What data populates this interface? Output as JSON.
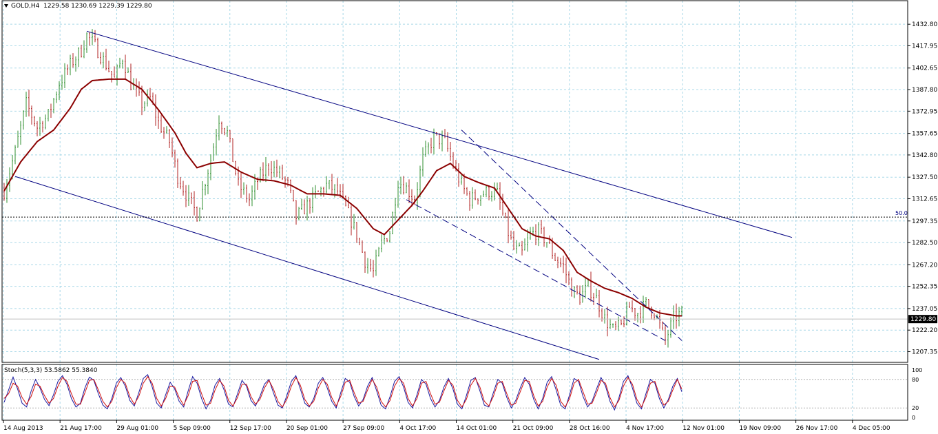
{
  "header": {
    "symbol_tf": "GOLD,H4",
    "ohlc": "1229.58 1230.69 1229.39 1229.80"
  },
  "colors": {
    "bull": "#2f8f2f",
    "bear": "#b22222",
    "ma": "#8b0000",
    "channel": "#000080",
    "grid": "#a8d8e8",
    "stoch_main": "#1a1aa0",
    "stoch_signal": "#d01010"
  },
  "chart_data": [
    {
      "type": "candlestick",
      "ylim": [
        1200.0,
        1440.0
      ],
      "y_ticks": [
        "1432.80",
        "1417.95",
        "1402.65",
        "1387.80",
        "1372.95",
        "1357.65",
        "1342.80",
        "1327.50",
        "1312.65",
        "1297.35",
        "1282.50",
        "1267.20",
        "1252.35",
        "1237.05",
        "1222.20",
        "1207.35"
      ],
      "x_ticks": [
        "14 Aug 2013",
        "21 Aug 17:00",
        "29 Aug 01:00",
        "5 Sep 09:00",
        "12 Sep 17:00",
        "20 Sep 01:00",
        "27 Sep 09:00",
        "4 Oct 17:00",
        "14 Oct 01:00",
        "21 Oct 09:00",
        "28 Oct 16:00",
        "4 Nov 17:00",
        "12 Nov 01:00",
        "19 Nov 09:00",
        "26 Nov 17:00",
        "4 Dec 05:00"
      ],
      "current_price": "1229.80",
      "level_line": {
        "label": "50.0",
        "value": 1300.0
      },
      "price_path": [
        [
          0,
          1318
        ],
        [
          4,
          1345
        ],
        [
          8,
          1378
        ],
        [
          12,
          1362
        ],
        [
          16,
          1370
        ],
        [
          20,
          1392
        ],
        [
          24,
          1405
        ],
        [
          28,
          1415
        ],
        [
          30,
          1425
        ],
        [
          33,
          1418
        ],
        [
          37,
          1405
        ],
        [
          40,
          1395
        ],
        [
          43,
          1410
        ],
        [
          46,
          1392
        ],
        [
          50,
          1378
        ],
        [
          53,
          1382
        ],
        [
          56,
          1365
        ],
        [
          60,
          1352
        ],
        [
          63,
          1328
        ],
        [
          66,
          1316
        ],
        [
          70,
          1302
        ],
        [
          72,
          1318
        ],
        [
          75,
          1340
        ],
        [
          78,
          1368
        ],
        [
          81,
          1358
        ],
        [
          85,
          1322
        ],
        [
          89,
          1312
        ],
        [
          92,
          1325
        ],
        [
          96,
          1336
        ],
        [
          100,
          1330
        ],
        [
          103,
          1322
        ],
        [
          106,
          1300
        ],
        [
          110,
          1308
        ],
        [
          113,
          1315
        ],
        [
          117,
          1322
        ],
        [
          121,
          1318
        ],
        [
          125,
          1302
        ],
        [
          128,
          1288
        ],
        [
          131,
          1270
        ],
        [
          134,
          1262
        ],
        [
          137,
          1282
        ],
        [
          140,
          1290
        ],
        [
          143,
          1325
        ],
        [
          146,
          1320
        ],
        [
          149,
          1312
        ],
        [
          152,
          1340
        ],
        [
          156,
          1355
        ],
        [
          160,
          1352
        ],
        [
          163,
          1336
        ],
        [
          166,
          1322
        ],
        [
          169,
          1312
        ],
        [
          172,
          1315
        ],
        [
          176,
          1318
        ],
        [
          179,
          1316
        ],
        [
          182,
          1295
        ],
        [
          185,
          1278
        ],
        [
          188,
          1275
        ],
        [
          191,
          1288
        ],
        [
          194,
          1290
        ],
        [
          197,
          1283
        ],
        [
          200,
          1272
        ],
        [
          203,
          1266
        ],
        [
          206,
          1250
        ],
        [
          209,
          1245
        ],
        [
          212,
          1252
        ],
        [
          215,
          1244
        ],
        [
          218,
          1230
        ],
        [
          221,
          1222
        ],
        [
          224,
          1225
        ],
        [
          227,
          1238
        ],
        [
          230,
          1234
        ],
        [
          233,
          1240
        ],
        [
          236,
          1235
        ],
        [
          240,
          1215
        ],
        [
          243,
          1230
        ],
        [
          246,
          1234
        ]
      ],
      "ma_path": [
        [
          0,
          1318
        ],
        [
          6,
          1338
        ],
        [
          12,
          1352
        ],
        [
          18,
          1360
        ],
        [
          24,
          1375
        ],
        [
          28,
          1388
        ],
        [
          32,
          1394
        ],
        [
          38,
          1395
        ],
        [
          44,
          1395
        ],
        [
          50,
          1388
        ],
        [
          56,
          1374
        ],
        [
          62,
          1358
        ],
        [
          66,
          1344
        ],
        [
          70,
          1334
        ],
        [
          75,
          1337
        ],
        [
          80,
          1338
        ],
        [
          86,
          1331
        ],
        [
          92,
          1326
        ],
        [
          98,
          1325
        ],
        [
          104,
          1322
        ],
        [
          110,
          1316
        ],
        [
          116,
          1316
        ],
        [
          122,
          1315
        ],
        [
          128,
          1306
        ],
        [
          134,
          1292
        ],
        [
          138,
          1288
        ],
        [
          143,
          1298
        ],
        [
          148,
          1308
        ],
        [
          152,
          1318
        ],
        [
          157,
          1332
        ],
        [
          162,
          1337
        ],
        [
          167,
          1328
        ],
        [
          172,
          1324
        ],
        [
          178,
          1320
        ],
        [
          183,
          1306
        ],
        [
          188,
          1292
        ],
        [
          193,
          1287
        ],
        [
          198,
          1285
        ],
        [
          203,
          1277
        ],
        [
          208,
          1262
        ],
        [
          213,
          1256
        ],
        [
          218,
          1251
        ],
        [
          223,
          1248
        ],
        [
          228,
          1244
        ],
        [
          233,
          1238
        ],
        [
          238,
          1234
        ],
        [
          244,
          1232
        ]
      ]
    },
    {
      "type": "line",
      "title": "Stoch(5,3,3) 53.5862 55.3840",
      "ylim": [
        0,
        100
      ],
      "y_ticks": [
        "100",
        "80",
        "20",
        "0"
      ],
      "levels": [
        20,
        80
      ],
      "series": [
        {
          "name": "main",
          "values": [
            32,
            58,
            85,
            60,
            30,
            22,
            55,
            80,
            62,
            38,
            25,
            48,
            76,
            88,
            70,
            40,
            22,
            30,
            62,
            85,
            78,
            50,
            26,
            18,
            40,
            72,
            84,
            66,
            36,
            24,
            52,
            82,
            90,
            64,
            30,
            20,
            48,
            74,
            60,
            34,
            22,
            56,
            86,
            72,
            40,
            18,
            36,
            68,
            82,
            58,
            28,
            22,
            50,
            78,
            66,
            36,
            24,
            44,
            70,
            80,
            52,
            26,
            20,
            46,
            76,
            88,
            60,
            30,
            22,
            40,
            72,
            84,
            62,
            34,
            20,
            52,
            82,
            74,
            44,
            24,
            38,
            66,
            84,
            56,
            26,
            18,
            44,
            76,
            86,
            64,
            32,
            20,
            48,
            80,
            70,
            40,
            22,
            36,
            64,
            82,
            60,
            28,
            18,
            46,
            78,
            84,
            56,
            26,
            22,
            52,
            80,
            72,
            42,
            20,
            36,
            62,
            84,
            70,
            38,
            18,
            40,
            74,
            86,
            58,
            26,
            18,
            48,
            82,
            76,
            44,
            22,
            34,
            60,
            84,
            66,
            34,
            16,
            42,
            76,
            88,
            62,
            30,
            18,
            50,
            80,
            72,
            40,
            20,
            38,
            66,
            82,
            54
          ]
        },
        {
          "name": "signal",
          "values": [
            40,
            50,
            72,
            66,
            42,
            28,
            44,
            70,
            66,
            46,
            30,
            40,
            66,
            84,
            76,
            50,
            28,
            28,
            52,
            78,
            80,
            58,
            34,
            22,
            34,
            62,
            80,
            72,
            44,
            28,
            44,
            72,
            86,
            72,
            40,
            24,
            40,
            66,
            64,
            42,
            26,
            46,
            76,
            78,
            50,
            26,
            30,
            58,
            78,
            66,
            36,
            24,
            42,
            70,
            70,
            44,
            28,
            38,
            62,
            78,
            60,
            34,
            22,
            38,
            66,
            84,
            68,
            38,
            24,
            34,
            62,
            80,
            70,
            42,
            24,
            44,
            74,
            78,
            52,
            30,
            34,
            58,
            80,
            64,
            34,
            22,
            36,
            66,
            82,
            72,
            40,
            24,
            40,
            72,
            76,
            50,
            28,
            32,
            56,
            78,
            68,
            36,
            22,
            38,
            68,
            82,
            64,
            34,
            24,
            44,
            72,
            76,
            50,
            26,
            30,
            54,
            78,
            76,
            46,
            24,
            34,
            64,
            82,
            68,
            34,
            22,
            40,
            72,
            80,
            54,
            28,
            30,
            52,
            78,
            72,
            42,
            22,
            36,
            66,
            84,
            70,
            38,
            22,
            42,
            72,
            76,
            48,
            26,
            34,
            58,
            80,
            60
          ]
        }
      ]
    }
  ]
}
